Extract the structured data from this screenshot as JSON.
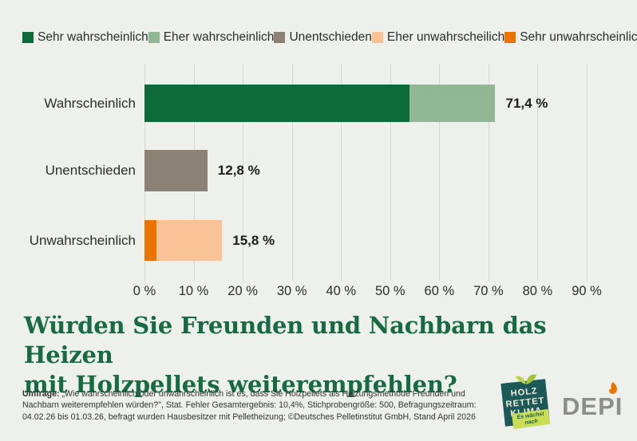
{
  "colors": {
    "background": "#eef0eb",
    "title_green": "#176a42",
    "grid": "#d5d9d3",
    "text": "#2d2d2b"
  },
  "legend": {
    "items": [
      {
        "label": "Sehr wahrscheinlich",
        "color": "#0d6a39"
      },
      {
        "label": "Eher wahrscheinlich",
        "color": "#92b795"
      },
      {
        "label": "Unentschieden",
        "color": "#8b8174"
      },
      {
        "label": "Eher unwahrscheilich",
        "color": "#f9c397"
      },
      {
        "label": "Sehr unwahrscheinlich",
        "color": "#e97400"
      }
    ]
  },
  "chart_data": {
    "type": "bar",
    "orientation": "horizontal",
    "stacked": true,
    "title": "Würden Sie Freunden und Nachbarn das Heizen mit Holzpellets weiterempfehlen?",
    "categories": [
      "Wahrscheinlich",
      "Unentschieden",
      "Unwahrscheinlich"
    ],
    "series": [
      {
        "name": "Sehr wahrscheinlich",
        "color": "#0d6a39",
        "values": [
          54.0,
          0,
          0
        ]
      },
      {
        "name": "Eher wahrscheinlich",
        "color": "#92b795",
        "values": [
          17.4,
          0,
          0
        ]
      },
      {
        "name": "Unentschieden",
        "color": "#8b8174",
        "values": [
          0,
          12.8,
          0
        ]
      },
      {
        "name": "Sehr unwahrscheinlich",
        "color": "#e97400",
        "values": [
          0,
          0,
          2.4
        ]
      },
      {
        "name": "Eher unwahrscheilich",
        "color": "#f9c397",
        "values": [
          0,
          0,
          13.4
        ]
      }
    ],
    "bar_totals": [
      {
        "category": "Wahrscheinlich",
        "value": 71.4,
        "label": "71,4 %"
      },
      {
        "category": "Unentschieden",
        "value": 12.8,
        "label": "12,8 %"
      },
      {
        "category": "Unwahrscheinlich",
        "value": 15.8,
        "label": "15,8 %"
      }
    ],
    "x_ticks": [
      {
        "value": 0,
        "label": "0 %"
      },
      {
        "value": 10,
        "label": "10 %"
      },
      {
        "value": 20,
        "label": "20 %"
      },
      {
        "value": 30,
        "label": "30 %"
      },
      {
        "value": 40,
        "label": "40 %"
      },
      {
        "value": 50,
        "label": "50 %"
      },
      {
        "value": 60,
        "label": "60 %"
      },
      {
        "value": 70,
        "label": "70 %"
      },
      {
        "value": 80,
        "label": "80 %"
      },
      {
        "value": 90,
        "label": "90 %"
      }
    ],
    "xlim": [
      0,
      90
    ],
    "grid": "vertical",
    "legend_position": "top"
  },
  "title": {
    "line1": "Würden Sie Freunden und Nachbarn das Heizen",
    "line2": "mit Holzpellets weiterempfehlen?"
  },
  "footer": {
    "label": "Umfrage:",
    "lines": [
      "„Wie wahrscheinlich oder unwahrscheinlich ist es, dass Sie Holzpellets als Heizungsmethode Freunden und",
      "Nachbarn weiterempfehlen würden?\", Stat. Fehler Gesamtergebnis: 10,4%, Stichprobengröße: 500, Befragungszeitraum:",
      "04.02.26 bis 01.03.26, befragt wurden Hausbesitzer mit Pelletheizung; ©Deutsches Pelletinstitut GmbH, Stand April 2026"
    ]
  },
  "logos": {
    "hrk": {
      "lines": [
        "HOLZ",
        "RETTET",
        "KLIMA"
      ],
      "ribbon_lines": [
        "Es wächst",
        "nach"
      ],
      "box_color": "#1d5a57",
      "ribbon_color": "#c9dd55"
    },
    "depi": {
      "text": "DEPI",
      "text_color": "#8d8d8d",
      "flame_color": "#e87301"
    }
  }
}
